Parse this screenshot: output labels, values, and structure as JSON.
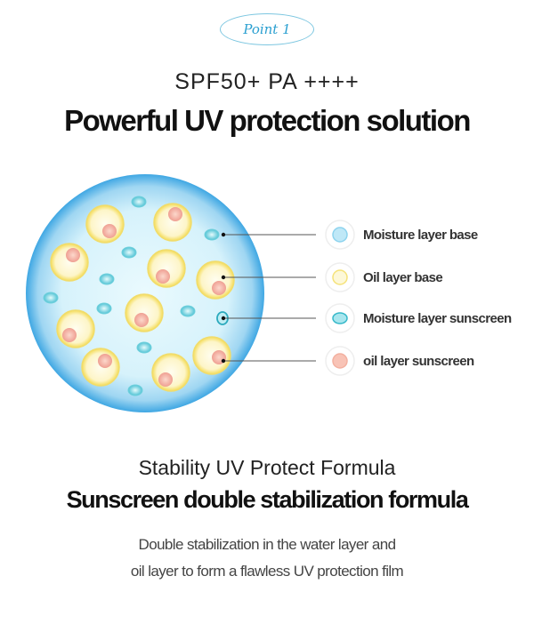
{
  "badge": "Point 1",
  "subtitle": "SPF50+ PA ++++",
  "title": "Powerful UV protection solution",
  "legend": [
    {
      "label": "Moisture layer base",
      "color": "#a9def2"
    },
    {
      "label": "Oil layer base",
      "color": "#fbf1a8"
    },
    {
      "label": "Moisture layer sunscreen",
      "color": "#57c8d6"
    },
    {
      "label": "oil layer sunscreen",
      "color": "#f6b4a4"
    }
  ],
  "colors": {
    "accent": "#2a9fd0",
    "sphere_edge": "#3fa7e3",
    "sphere_center": "#e8f8fd"
  },
  "heading1": "Stability UV Protect Formula",
  "heading2": "Sunscreen double stabilization formula",
  "desc_line1": "Double stabilization in the water layer and",
  "desc_line2": "oil layer to form a flawless UV protection film"
}
